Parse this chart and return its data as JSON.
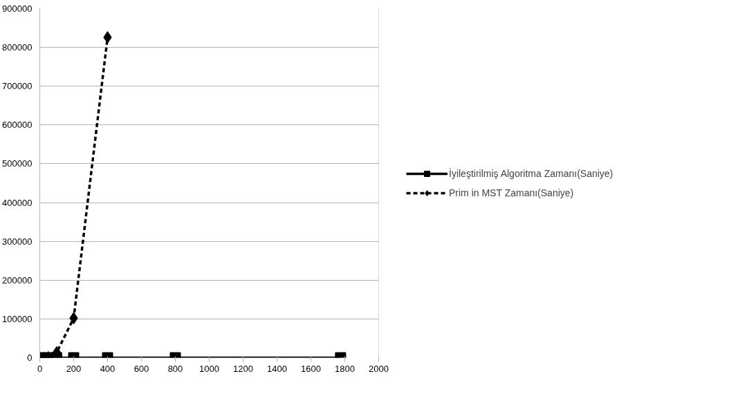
{
  "chart_data": {
    "type": "line",
    "xlim": [
      0,
      2000
    ],
    "xticks": [
      0,
      200,
      400,
      600,
      800,
      1000,
      1200,
      1400,
      1600,
      1800,
      2000
    ],
    "ylim": [
      0,
      900000
    ],
    "yticks": [
      0,
      100000,
      200000,
      300000,
      400000,
      500000,
      600000,
      700000,
      800000,
      900000
    ],
    "grid": "y",
    "legend": "right",
    "series": [
      {
        "name": "İyileştirilmiş Algoritma Zamanı(Saniye)",
        "color": "#000000",
        "marker": "square",
        "line_style": "solid",
        "x": [
          0,
          50,
          100,
          200,
          400,
          800,
          1775
        ],
        "values": [
          0,
          0,
          0,
          0,
          0,
          0,
          0
        ]
      },
      {
        "name": "Prim in MST Zamanı(Saniye)",
        "color": "#000000",
        "marker": "diamond",
        "line_style": "dashed",
        "x": [
          0,
          50,
          100,
          200,
          400
        ],
        "values": [
          0,
          1000,
          14000,
          102000,
          826000
        ]
      }
    ]
  }
}
